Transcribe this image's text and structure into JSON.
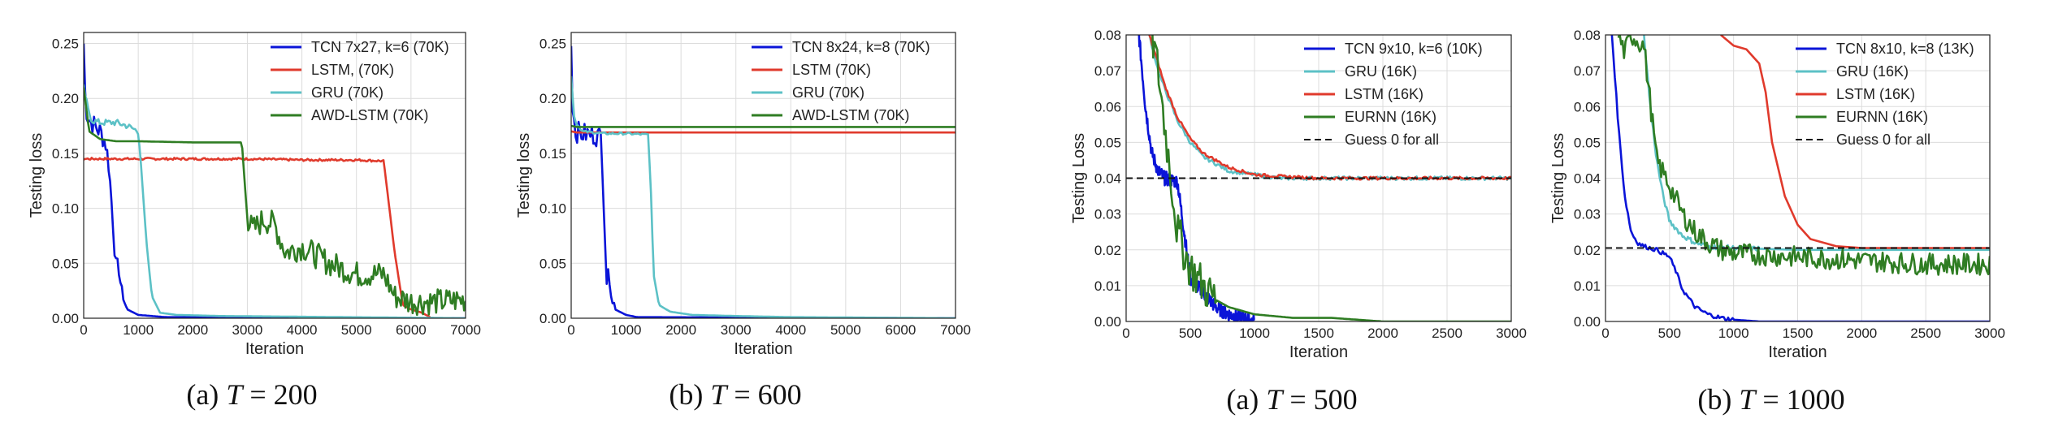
{
  "colors": {
    "TCN": "#0a14d8",
    "LSTM": "#e03a2c",
    "GRU": "#5cc1c6",
    "AWD": "#2f7d23",
    "EURNN": "#2f7d23",
    "guess": "#111111"
  },
  "chart_data": [
    {
      "type": "line",
      "caption_prefix": "(a) ",
      "caption_var": "T",
      "caption_value": " = 200",
      "xlabel": "Iteration",
      "ylabel": "Testing loss",
      "xlim": [
        0,
        7000
      ],
      "ylim": [
        0,
        0.26
      ],
      "xticks": [
        0,
        1000,
        2000,
        3000,
        4000,
        5000,
        6000,
        7000
      ],
      "xtick_labels": [
        "0",
        "1000",
        "2000",
        "3000",
        "4000",
        "5000",
        "6000",
        "7000"
      ],
      "yticks": [
        0,
        0.05,
        0.1,
        0.15,
        0.2,
        0.25
      ],
      "ytick_labels": [
        "0.00",
        "0.05",
        "0.10",
        "0.15",
        "0.20",
        "0.25"
      ],
      "series": [
        {
          "name": "TCN 7x27, k=6 (70K)",
          "color": "TCN",
          "x": [
            0,
            20,
            60,
            120,
            200,
            300,
            400,
            460,
            520,
            560,
            600,
            640,
            700,
            800,
            1000,
            1500,
            7000
          ],
          "y": [
            0.25,
            0.21,
            0.185,
            0.18,
            0.175,
            0.17,
            0.16,
            0.14,
            0.1,
            0.07,
            0.04,
            0.05,
            0.02,
            0.008,
            0.003,
            0.001,
            0.0
          ],
          "noise": 0.01,
          "noise_until": 700
        },
        {
          "name": "LSTM, (70K)",
          "color": "LSTM",
          "x": [
            0,
            1000,
            2000,
            3000,
            4000,
            5000,
            5500,
            5700,
            5850,
            6000,
            6200,
            6350
          ],
          "y": [
            0.145,
            0.145,
            0.145,
            0.145,
            0.144,
            0.144,
            0.143,
            0.06,
            0.012,
            0.008,
            0.005,
            0.001
          ],
          "noise": 0.001,
          "noise_until": 5500
        },
        {
          "name": "GRU (70K)",
          "color": "GRU",
          "x": [
            0,
            80,
            150,
            300,
            600,
            800,
            1000,
            1050,
            1150,
            1250,
            1400,
            1700,
            2500,
            7000
          ],
          "y": [
            0.21,
            0.19,
            0.18,
            0.178,
            0.178,
            0.175,
            0.17,
            0.14,
            0.07,
            0.02,
            0.005,
            0.003,
            0.002,
            0.0
          ],
          "noise": 0.003,
          "noise_until": 1000
        },
        {
          "name": "AWD-LSTM (70K)",
          "color": "AWD",
          "x": [
            0,
            100,
            300,
            600,
            1000,
            2000,
            2900,
            3000,
            3100,
            3300,
            3500,
            3700,
            4000,
            4500,
            5000,
            5500,
            5700,
            6000,
            6500,
            7000
          ],
          "y": [
            0.21,
            0.17,
            0.163,
            0.161,
            0.161,
            0.16,
            0.16,
            0.09,
            0.08,
            0.09,
            0.085,
            0.06,
            0.065,
            0.05,
            0.04,
            0.04,
            0.02,
            0.015,
            0.015,
            0.017
          ],
          "noise": 0.012,
          "noise_from": 3000
        }
      ]
    },
    {
      "type": "line",
      "caption_prefix": "(b) ",
      "caption_var": "T",
      "caption_value": " = 600",
      "xlabel": "Iteration",
      "ylabel": "Testing loss",
      "xlim": [
        0,
        7000
      ],
      "ylim": [
        0,
        0.26
      ],
      "xticks": [
        0,
        1000,
        2000,
        3000,
        4000,
        5000,
        6000,
        7000
      ],
      "xtick_labels": [
        "0",
        "1000",
        "2000",
        "3000",
        "4000",
        "5000",
        "6000",
        "7000"
      ],
      "yticks": [
        0,
        0.05,
        0.1,
        0.15,
        0.2,
        0.25
      ],
      "ytick_labels": [
        "0.00",
        "0.05",
        "0.10",
        "0.15",
        "0.20",
        "0.25"
      ],
      "series": [
        {
          "name": "TCN 8x24, k=8 (70K)",
          "color": "TCN",
          "x": [
            0,
            30,
            80,
            200,
            400,
            550,
            600,
            650,
            700,
            750,
            800,
            1000,
            1200,
            7000
          ],
          "y": [
            0.25,
            0.19,
            0.17,
            0.168,
            0.167,
            0.165,
            0.1,
            0.03,
            0.04,
            0.02,
            0.008,
            0.003,
            0.001,
            0.0
          ],
          "noise": 0.01,
          "noise_until": 800
        },
        {
          "name": "LSTM (70K)",
          "color": "LSTM",
          "x": [
            0,
            100,
            7000
          ],
          "y": [
            0.17,
            0.169,
            0.169
          ],
          "noise": 0.0
        },
        {
          "name": "GRU (70K)",
          "color": "GRU",
          "x": [
            0,
            60,
            200,
            600,
            1000,
            1400,
            1450,
            1500,
            1600,
            1800,
            2200,
            3000,
            4000,
            7000
          ],
          "y": [
            0.22,
            0.18,
            0.17,
            0.168,
            0.168,
            0.167,
            0.12,
            0.04,
            0.012,
            0.006,
            0.003,
            0.002,
            0.001,
            0.0
          ],
          "noise": 0.001,
          "noise_until": 1400
        },
        {
          "name": "AWD-LSTM (70K)",
          "color": "AWD",
          "x": [
            0,
            100,
            7000
          ],
          "y": [
            0.175,
            0.174,
            0.174
          ],
          "noise": 0.0
        }
      ]
    },
    {
      "type": "line",
      "caption_prefix": "(a) ",
      "caption_var": "T",
      "caption_value": " = 500",
      "xlabel": "Iteration",
      "ylabel": "Testing Loss",
      "xlim": [
        0,
        3000
      ],
      "ylim": [
        0,
        0.08
      ],
      "xticks": [
        0,
        500,
        1000,
        1500,
        2000,
        2500,
        3000
      ],
      "xtick_labels": [
        "0",
        "500",
        "1000",
        "1500",
        "2000",
        "2500",
        "3000"
      ],
      "yticks": [
        0,
        0.01,
        0.02,
        0.03,
        0.04,
        0.05,
        0.06,
        0.07,
        0.08
      ],
      "ytick_labels": [
        "0.00",
        "0.01",
        "0.02",
        "0.03",
        "0.04",
        "0.05",
        "0.06",
        "0.07",
        "0.08"
      ],
      "series": [
        {
          "name": "TCN 9x10, k=6 (10K)",
          "color": "TCN",
          "x": [
            100,
            150,
            200,
            250,
            300,
            400,
            500,
            600,
            700,
            800,
            900,
            1000
          ],
          "y": [
            0.08,
            0.06,
            0.047,
            0.042,
            0.04,
            0.039,
            0.012,
            0.008,
            0.004,
            0.002,
            0.001,
            0.0
          ],
          "noise": 0.002,
          "noise_until": 1000
        },
        {
          "name": "GRU (16K)",
          "color": "GRU",
          "x": [
            180,
            250,
            300,
            400,
            500,
            600,
            700,
            800,
            1000,
            1200,
            1500,
            2000,
            3000
          ],
          "y": [
            0.08,
            0.07,
            0.065,
            0.056,
            0.05,
            0.046,
            0.044,
            0.042,
            0.041,
            0.04,
            0.04,
            0.04,
            0.04
          ],
          "noise": 0.0005
        },
        {
          "name": "LSTM (16K)",
          "color": "LSTM",
          "x": [
            180,
            250,
            300,
            400,
            500,
            600,
            700,
            800,
            1000,
            1200,
            1500,
            2000,
            3000
          ],
          "y": [
            0.08,
            0.072,
            0.066,
            0.057,
            0.051,
            0.047,
            0.045,
            0.043,
            0.041,
            0.0405,
            0.04,
            0.04,
            0.04
          ],
          "noise": 0.0004
        },
        {
          "name": "EURNN (16K)",
          "color": "EURNN",
          "x": [
            200,
            250,
            300,
            350,
            400,
            450,
            500,
            600,
            700,
            800,
            1000,
            1300,
            1600,
            2000,
            3000
          ],
          "y": [
            0.08,
            0.07,
            0.055,
            0.04,
            0.025,
            0.02,
            0.015,
            0.01,
            0.006,
            0.004,
            0.002,
            0.001,
            0.001,
            0.0,
            0.0
          ],
          "noise": 0.006,
          "noise_until": 700
        },
        {
          "name": "Guess 0 for all",
          "color": "guess",
          "dashed": true,
          "x": [
            0,
            3000
          ],
          "y": [
            0.04,
            0.04
          ],
          "noise": 0.0
        }
      ]
    },
    {
      "type": "line",
      "caption_prefix": "(b) ",
      "caption_var": "T",
      "caption_value": " = 1000",
      "xlabel": "Iteration",
      "ylabel": "Testing Loss",
      "xlim": [
        0,
        3000
      ],
      "ylim": [
        0,
        0.08
      ],
      "xticks": [
        0,
        500,
        1000,
        1500,
        2000,
        2500,
        3000
      ],
      "xtick_labels": [
        "0",
        "500",
        "1000",
        "1500",
        "2000",
        "2500",
        "3000"
      ],
      "yticks": [
        0,
        0.01,
        0.02,
        0.03,
        0.04,
        0.05,
        0.06,
        0.07,
        0.08
      ],
      "ytick_labels": [
        "0.00",
        "0.01",
        "0.02",
        "0.03",
        "0.04",
        "0.05",
        "0.06",
        "0.07",
        "0.08"
      ],
      "series": [
        {
          "name": "TCN 8x10, k=8 (13K)",
          "color": "TCN",
          "x": [
            50,
            100,
            150,
            200,
            250,
            300,
            400,
            500,
            550,
            600,
            700,
            800,
            900,
            1000,
            1200,
            3000
          ],
          "y": [
            0.08,
            0.055,
            0.035,
            0.025,
            0.022,
            0.021,
            0.02,
            0.018,
            0.014,
            0.009,
            0.004,
            0.002,
            0.001,
            0.0005,
            0.0,
            0.0
          ],
          "noise": 0.0006,
          "noise_until": 1000
        },
        {
          "name": "GRU (16K)",
          "color": "GRU",
          "x": [
            300,
            350,
            400,
            450,
            500,
            600,
            700,
            800,
            1000,
            1500,
            2000,
            3000
          ],
          "y": [
            0.08,
            0.06,
            0.045,
            0.035,
            0.028,
            0.024,
            0.022,
            0.021,
            0.0205,
            0.02,
            0.02,
            0.02
          ],
          "noise": 0.0007,
          "noise_until": 1200
        },
        {
          "name": "LSTM (16K)",
          "color": "LSTM",
          "x": [
            900,
            1000,
            1100,
            1200,
            1250,
            1300,
            1400,
            1500,
            1600,
            1800,
            2000,
            2500,
            3000
          ],
          "y": [
            0.08,
            0.077,
            0.076,
            0.072,
            0.064,
            0.05,
            0.035,
            0.027,
            0.023,
            0.021,
            0.0205,
            0.0205,
            0.0205
          ],
          "noise": 0.0
        },
        {
          "name": "EURNN (16K)",
          "color": "EURNN",
          "x": [
            100,
            150,
            200,
            300,
            400,
            500,
            600,
            700,
            800,
            900,
            1000,
            1500,
            2000,
            2500,
            3000
          ],
          "y": [
            0.08,
            0.075,
            0.08,
            0.077,
            0.045,
            0.038,
            0.03,
            0.025,
            0.022,
            0.02,
            0.019,
            0.018,
            0.017,
            0.016,
            0.016
          ],
          "noise": 0.003
        },
        {
          "name": "Guess 0 for all",
          "color": "guess",
          "dashed": true,
          "x": [
            0,
            3000
          ],
          "y": [
            0.0205,
            0.0205
          ],
          "noise": 0.0
        }
      ]
    }
  ]
}
